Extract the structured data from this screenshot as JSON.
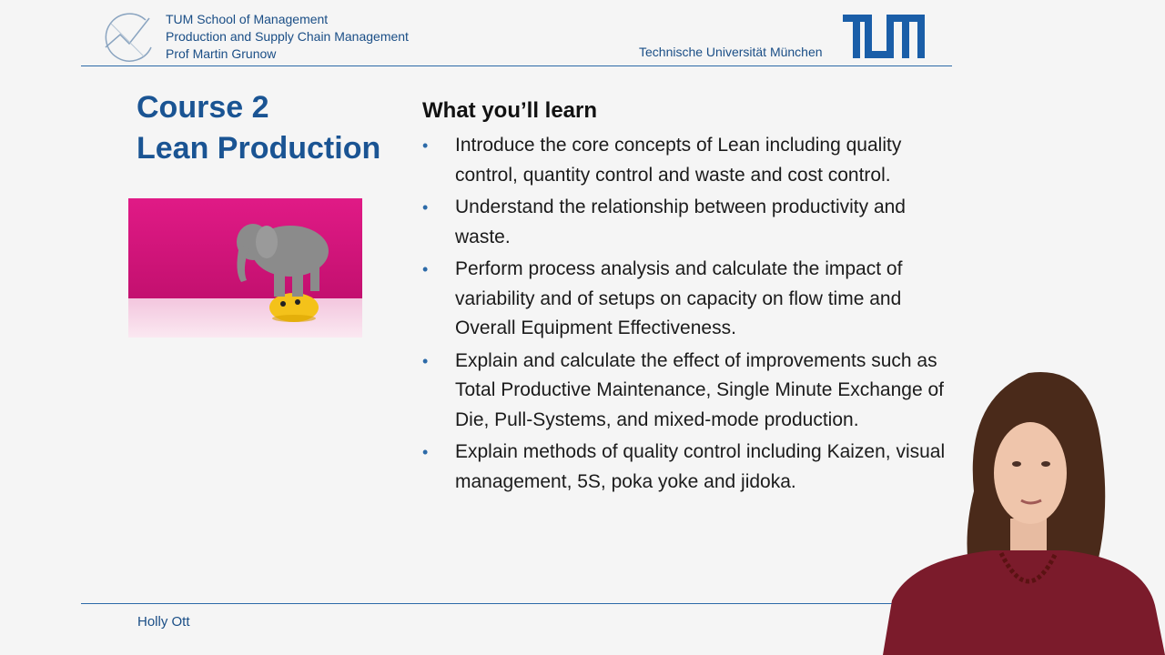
{
  "header": {
    "school_lines": [
      "TUM School of Management",
      "Production and Supply Chain Management",
      "Prof Martin Grunow"
    ],
    "university": "Technische Universität München",
    "brand_color": "#1a4e86"
  },
  "title": {
    "line1": "Course 2",
    "line2": "Lean Production"
  },
  "learn": {
    "heading": "What you’ll learn",
    "items": [
      "Introduce the core concepts of Lean including quality control, quantity control and waste and cost control.",
      "Understand the relationship between productivity and waste.",
      "Perform process analysis and calculate the impact of variability and of setups on capacity on flow time and Overall Equipment Effectiveness.",
      "Explain and calculate the effect of improvements such as Total Productive Maintenance, Single Minute Exchange of Die, Pull-Systems, and mixed-mode production.",
      "Explain methods of quality control including Kaizen, visual management, 5S, poka yoke and jidoka."
    ]
  },
  "footer": {
    "name": "Holly Ott"
  },
  "icons": {
    "header_logo": "tum-curve-logo-icon",
    "tum_logo": "tum-logo",
    "image": "elephant-on-ball-image",
    "presenter": "presenter-video"
  }
}
